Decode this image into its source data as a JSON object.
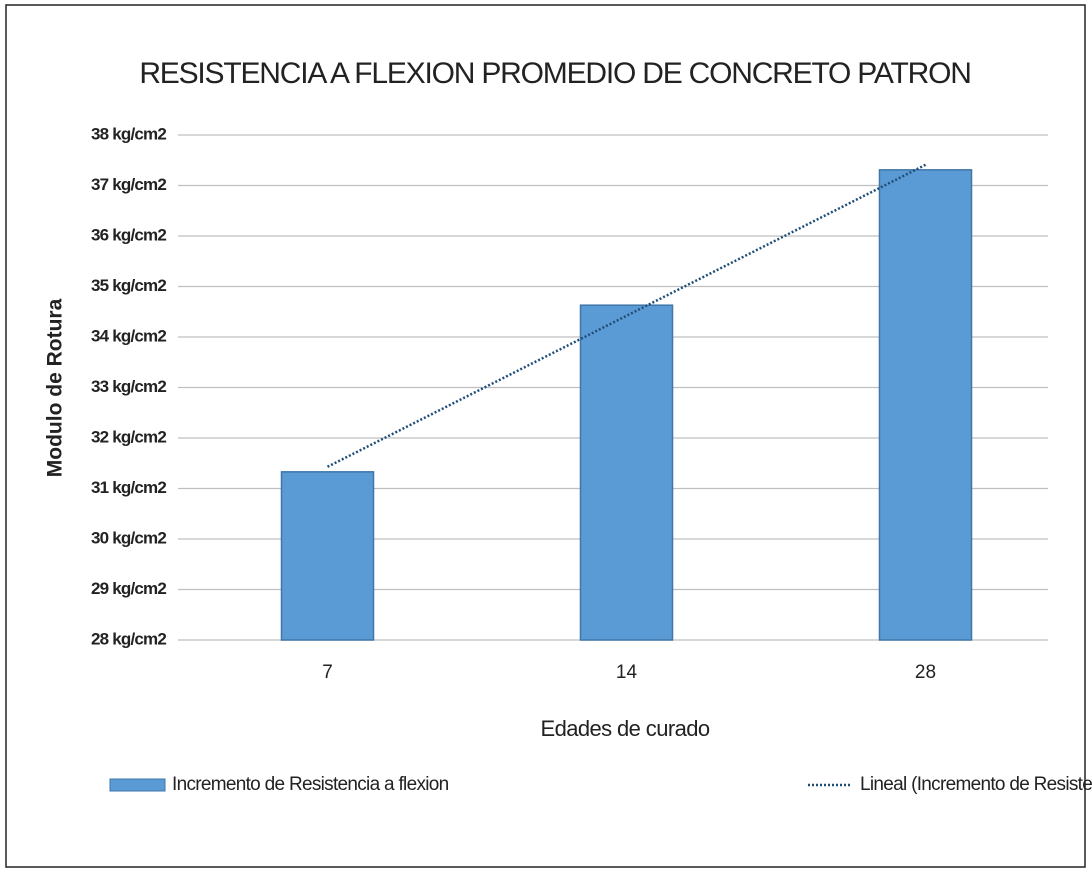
{
  "chart_data": {
    "type": "bar",
    "title": "RESISTENCIA A FLEXION PROMEDIO DE CONCRETO PATRON",
    "x_label": "Edades de curado",
    "y_label": "Modulo de Rotura",
    "categories": [
      "7",
      "14",
      "28"
    ],
    "series": [
      {
        "name": "Incremento de Resistencia a flexion",
        "type": "bar",
        "color": "#5b9bd5",
        "values": [
          31.33,
          34.63,
          37.31
        ]
      },
      {
        "name": "Lineal (Incremento de Resistencia a flexion)",
        "type": "line",
        "color": "#1f4e79",
        "values": [
          31.43,
          34.42,
          37.41
        ]
      }
    ],
    "ylim": [
      28,
      38
    ],
    "yticks": [
      {
        "value": 28,
        "label": "28 kg/cm2"
      },
      {
        "value": 29,
        "label": "29 kg/cm2"
      },
      {
        "value": 30,
        "label": "30 kg/cm2"
      },
      {
        "value": 31,
        "label": "31 kg/cm2"
      },
      {
        "value": 32,
        "label": "32 kg/cm2"
      },
      {
        "value": 33,
        "label": "33 kg/cm2"
      },
      {
        "value": 34,
        "label": "34 kg/cm2"
      },
      {
        "value": 35,
        "label": "35 kg/cm2"
      },
      {
        "value": 36,
        "label": "36 kg/cm2"
      },
      {
        "value": 37,
        "label": "37 kg/cm2"
      },
      {
        "value": 38,
        "label": "38 kg/cm2"
      }
    ],
    "grid": true,
    "legend": "bottom"
  }
}
